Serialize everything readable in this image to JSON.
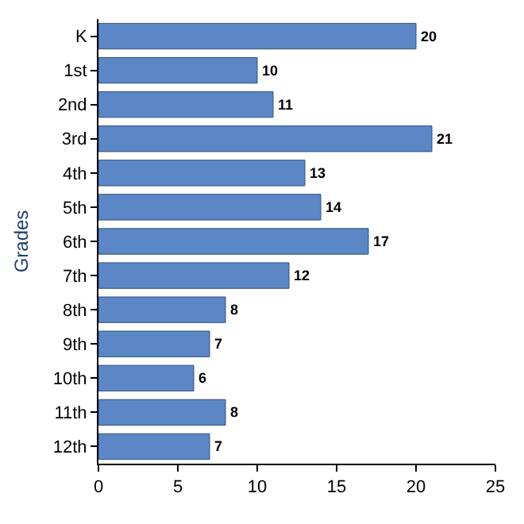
{
  "chart_data": {
    "type": "bar",
    "orientation": "horizontal",
    "ylabel": "Grades",
    "categories": [
      "K",
      "1st",
      "2nd",
      "3rd",
      "4th",
      "5th",
      "6th",
      "7th",
      "8th",
      "9th",
      "10th",
      "11th",
      "12th"
    ],
    "values": [
      20,
      10,
      11,
      21,
      13,
      14,
      17,
      12,
      8,
      7,
      6,
      8,
      7
    ],
    "color": "#5b87c6",
    "xlim": [
      0,
      25
    ],
    "xticks": [
      0,
      5,
      10,
      15,
      20,
      25
    ],
    "grid": false,
    "legend": false,
    "data_labels": true
  }
}
